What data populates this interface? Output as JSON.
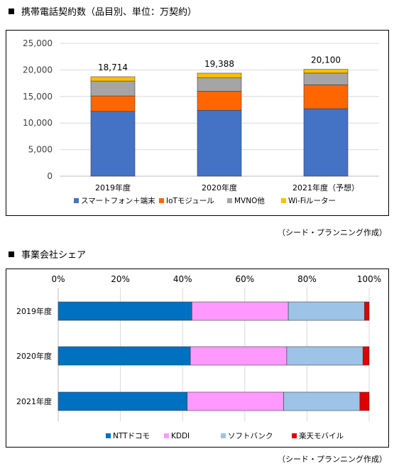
{
  "section1": {
    "heading": "携帯電話契約数（品目別、単位：万契約）",
    "credit": "（シード・プランニング作成）"
  },
  "section2": {
    "heading": "事業会社シェア",
    "credit": "（シード・プランニング作成）"
  },
  "chart_data": [
    {
      "type": "bar",
      "stacked": true,
      "orientation": "vertical",
      "categories": [
        "2019年度",
        "2020年度",
        "2021年度（予想）"
      ],
      "series": [
        {
          "name": "スマートフォン＋端末",
          "values": [
            12200,
            12400,
            12700
          ],
          "color": "#4472c4"
        },
        {
          "name": "IoTモジュール",
          "values": [
            2900,
            3600,
            4500
          ],
          "color": "#ff6600"
        },
        {
          "name": "MVNO他",
          "values": [
            2800,
            2500,
            2200
          ],
          "color": "#a5a5a5"
        },
        {
          "name": "Wi-Fiルーター",
          "values": [
            814,
            888,
            700
          ],
          "color": "#ffc000"
        }
      ],
      "totals": [
        "18,714",
        "19,388",
        "20,100"
      ],
      "yticks": [
        "0",
        "5,000",
        "10,000",
        "15,000",
        "20,000",
        "25,000"
      ],
      "ylim": [
        0,
        25000
      ],
      "grid": true,
      "legend": "bottom"
    },
    {
      "type": "bar",
      "stacked": true,
      "orientation": "horizontal",
      "categories": [
        "2019年度",
        "2020年度",
        "2021年度"
      ],
      "series": [
        {
          "name": "NTTドコモ",
          "values": [
            43,
            42.5,
            41.5
          ],
          "color": "#0070c0"
        },
        {
          "name": "KDDI",
          "values": [
            31,
            31,
            31
          ],
          "color": "#ff99ff"
        },
        {
          "name": "ソフトバンク",
          "values": [
            24.5,
            24.5,
            24.5
          ],
          "color": "#9dc3e6"
        },
        {
          "name": "楽天モバイル",
          "values": [
            1.5,
            2,
            3
          ],
          "color": "#e00000"
        }
      ],
      "xticks": [
        "0%",
        "20%",
        "40%",
        "60%",
        "80%",
        "100%"
      ],
      "xlim": [
        0,
        100
      ],
      "grid": true,
      "legend": "bottom"
    }
  ]
}
